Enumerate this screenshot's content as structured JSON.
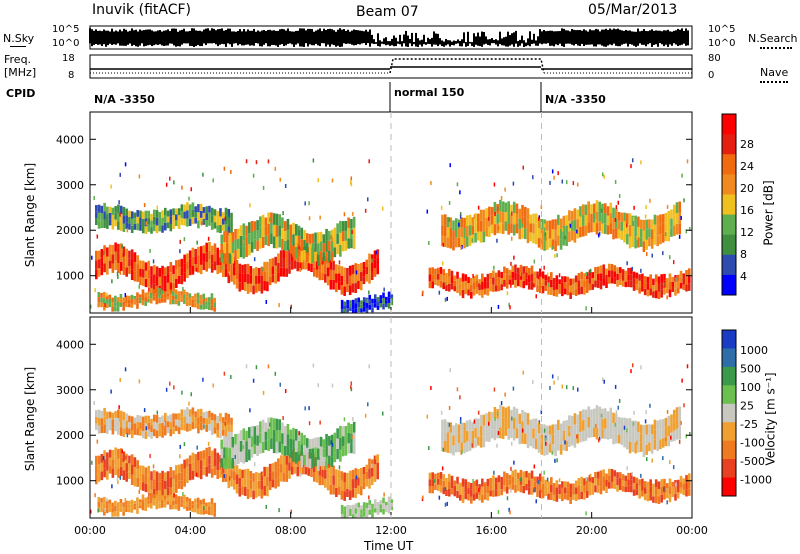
{
  "header": {
    "station": "Inuvik (fitACF)",
    "beam": "Beam 07",
    "date": "05/Mar/2013"
  },
  "colors": {
    "power_scale": [
      "#0000ff",
      "#2e4bb0",
      "#3f8f3f",
      "#5fae50",
      "#f0c020",
      "#f08a1e",
      "#f06a10",
      "#e51e10",
      "#ff0000"
    ],
    "velocity_scale": [
      "#1a3cc4",
      "#2e6ea8",
      "#3b9a4a",
      "#6cc050",
      "#c8c8c0",
      "#f0a030",
      "#f07a20",
      "#e84020",
      "#ff0000"
    ]
  },
  "chart_data": [
    {
      "type": "line",
      "name": "noise-search-panel",
      "left_label": "N.Sky",
      "right_label": "N.Search",
      "left_ticks": [
        "10^5",
        "10^0"
      ],
      "right_ticks": [
        "10^5",
        "10^0"
      ]
    },
    {
      "type": "line",
      "name": "freq-nave-panel",
      "left_label_1": "Freq.",
      "left_label_2": "[MHz]",
      "right_label": "Nave",
      "left_ticks": [
        "18",
        "8"
      ],
      "right_ticks": [
        "80",
        "0"
      ],
      "cpid_label": "CPID",
      "cpid_segments": [
        {
          "label": "N/A -3350",
          "start_hour": 0,
          "end_hour": 12
        },
        {
          "label": "normal 150",
          "start_hour": 12,
          "end_hour": 18
        },
        {
          "label": "N/A -3350",
          "start_hour": 18,
          "end_hour": 24
        }
      ]
    },
    {
      "type": "heatmap",
      "name": "power-panel",
      "ylabel": "Slant Range [km]",
      "yticks": [
        1000,
        2000,
        3000,
        4000
      ],
      "ylim": [
        180,
        4600
      ],
      "xlim": [
        0,
        24
      ],
      "colorbar_label": "Power [dB]",
      "colorbar_ticks": [
        "28",
        "24",
        "20",
        "16",
        "12",
        "8",
        "4"
      ]
    },
    {
      "type": "heatmap",
      "name": "velocity-panel",
      "ylabel": "Slant Range [km]",
      "yticks": [
        1000,
        2000,
        3000,
        4000
      ],
      "ylim": [
        180,
        4600
      ],
      "xlim": [
        0,
        24
      ],
      "xlabel": "Time UT",
      "xtick_labels": [
        "00:00",
        "04:00",
        "08:00",
        "12:00",
        "16:00",
        "20:00",
        "00:00"
      ],
      "colorbar_label": "Velocity [m s⁻¹]",
      "colorbar_ticks": [
        "1000",
        "500",
        "100",
        "25",
        "-25",
        "-100",
        "-500",
        "-1000"
      ]
    }
  ]
}
